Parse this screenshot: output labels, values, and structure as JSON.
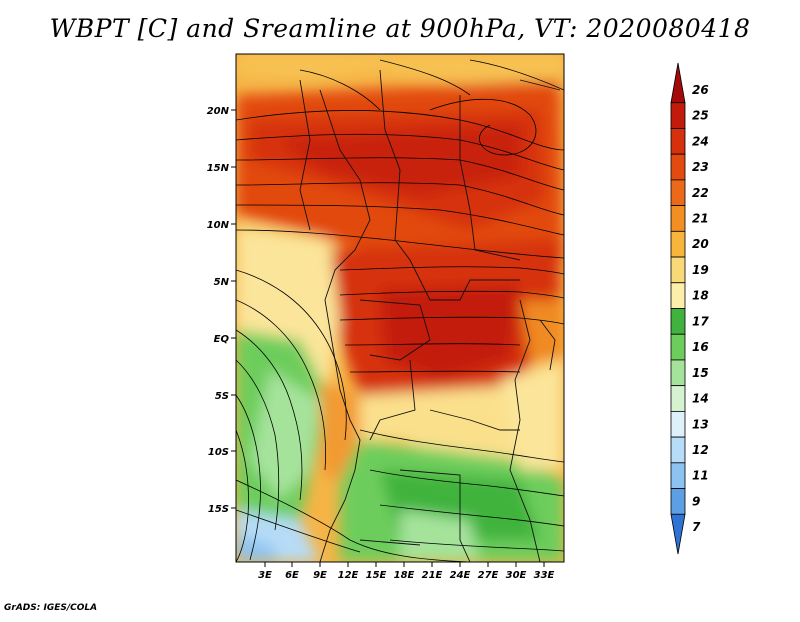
{
  "title": "WBPT [C] and Sreamline at 900hPa, VT: 2020080418",
  "credit": "GrADS: IGES/COLA",
  "map": {
    "lat_labels": [
      "20N",
      "15N",
      "10N",
      "5N",
      "EQ",
      "5S",
      "10S",
      "15S"
    ],
    "lon_labels": [
      "3E",
      "6E",
      "9E",
      "12E",
      "15E",
      "18E",
      "21E",
      "24E",
      "27E",
      "30E",
      "33E"
    ]
  },
  "colorbar": {
    "levels": [
      "26",
      "25",
      "24",
      "23",
      "22",
      "21",
      "20",
      "19",
      "18",
      "17",
      "16",
      "15",
      "14",
      "13",
      "12",
      "11",
      "9",
      "7"
    ],
    "colors": [
      "#a50a0a",
      "#c31b0b",
      "#d6300d",
      "#e24a10",
      "#ec6a17",
      "#f38f22",
      "#f7b53b",
      "#f9d877",
      "#fbefaa",
      "#3fb33d",
      "#6dcd5c",
      "#a5e39b",
      "#d5f3d0",
      "#def1fb",
      "#b6dcf7",
      "#8cc3f0",
      "#5c9fe4",
      "#2f74d4"
    ]
  }
}
